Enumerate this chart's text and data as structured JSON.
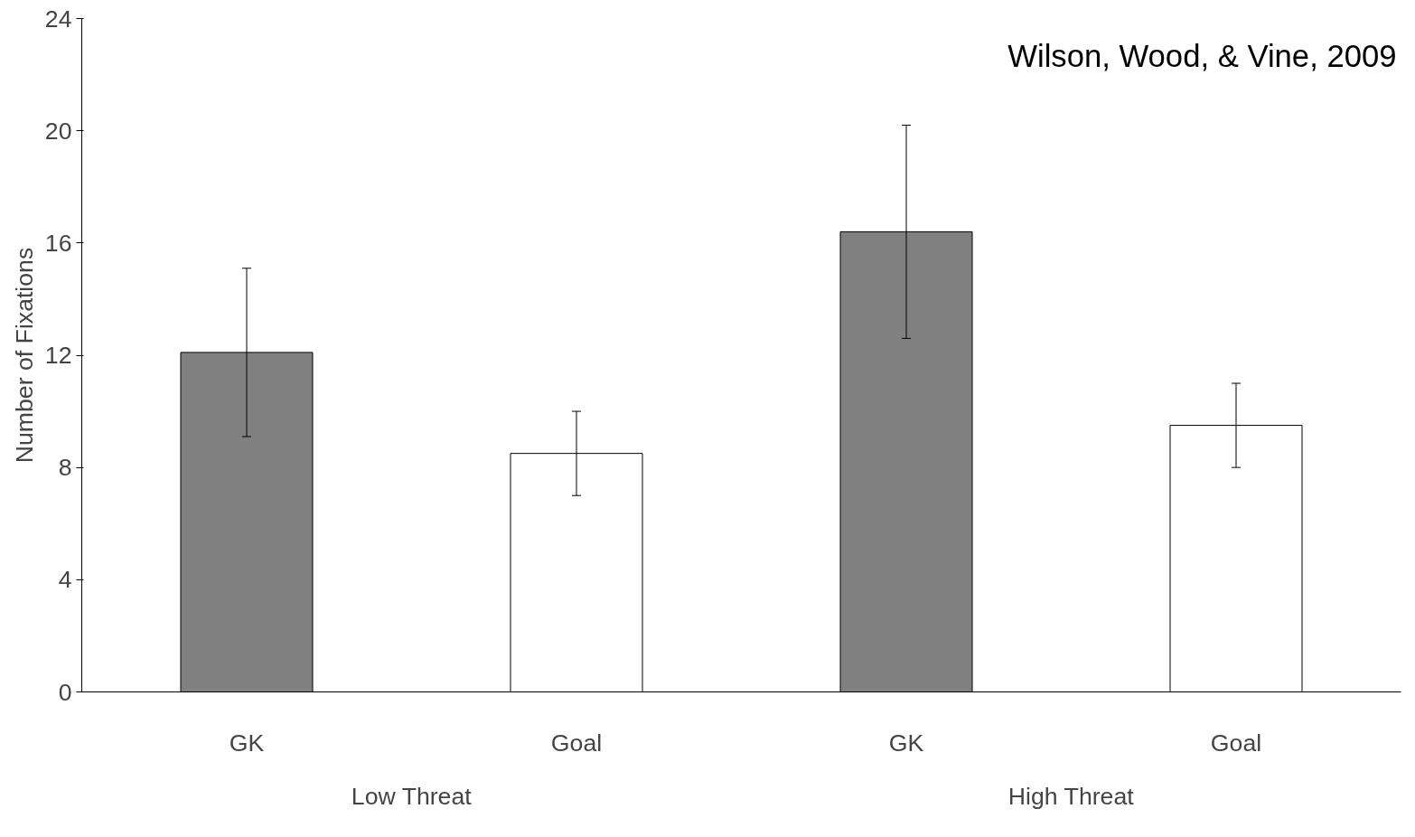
{
  "chart_data": {
    "type": "bar",
    "ylabel": "Number of Fixations",
    "categories": [
      "GK",
      "Goal",
      "GK",
      "Goal"
    ],
    "values": [
      12.1,
      8.5,
      16.4,
      9.5
    ],
    "colors": [
      "#808080",
      "#ffffff",
      "#808080",
      "#ffffff"
    ],
    "errors": [
      3.0,
      1.5,
      3.8,
      1.5
    ],
    "ylim": [
      0,
      24
    ],
    "yticks": [
      0,
      4,
      8,
      12,
      16,
      20,
      24
    ],
    "grid": false,
    "annotations": [
      "Wilson, Wood, & Vine, 2009",
      "Low Threat",
      "High Threat"
    ]
  }
}
